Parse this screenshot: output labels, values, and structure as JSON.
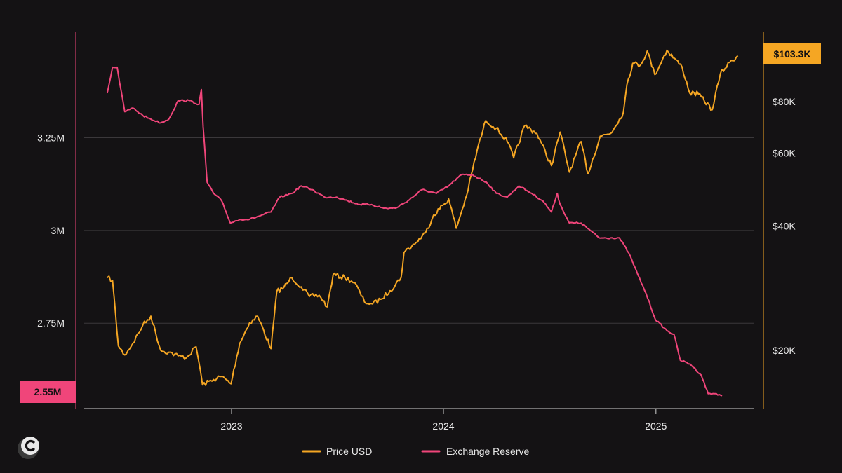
{
  "chart_data": {
    "type": "line",
    "title": "",
    "xlabel": "",
    "x_ticks": [
      "2023",
      "2024",
      "2025"
    ],
    "left_axis": {
      "series": "Exchange Reserve",
      "ticks": [
        {
          "value": 3250000,
          "label": "3.25M"
        },
        {
          "value": 3000000,
          "label": "3M"
        },
        {
          "value": 2750000,
          "label": "2.75M"
        }
      ],
      "ylim": [
        2520000,
        3470000
      ],
      "current_label": "2.55M"
    },
    "right_axis": {
      "series": "Price USD",
      "scale": "log",
      "ticks": [
        {
          "value": 80000,
          "label": "$80K"
        },
        {
          "value": 60000,
          "label": "$60K"
        },
        {
          "value": 40000,
          "label": "$40K"
        },
        {
          "value": 20000,
          "label": "$20K"
        }
      ],
      "ylim": [
        15000,
        120000
      ],
      "current_label": "$103.3K"
    },
    "grid": "horizontal",
    "legend_position": "bottom-center",
    "series": [
      {
        "name": "Price USD",
        "color": "#f5a623",
        "axis": "right",
        "points": [
          [
            "2022-06-01",
            30000
          ],
          [
            "2022-06-10",
            29500
          ],
          [
            "2022-06-20",
            20500
          ],
          [
            "2022-07-01",
            19500
          ],
          [
            "2022-07-15",
            20800
          ],
          [
            "2022-08-01",
            23000
          ],
          [
            "2022-08-15",
            24200
          ],
          [
            "2022-09-01",
            20000
          ],
          [
            "2022-09-15",
            19800
          ],
          [
            "2022-10-01",
            19400
          ],
          [
            "2022-10-15",
            19200
          ],
          [
            "2022-11-01",
            20400
          ],
          [
            "2022-11-08",
            18000
          ],
          [
            "2022-11-12",
            16500
          ],
          [
            "2022-12-01",
            17000
          ],
          [
            "2022-12-15",
            17300
          ],
          [
            "2022-12-31",
            16600
          ],
          [
            "2023-01-15",
            20800
          ],
          [
            "2023-02-01",
            23300
          ],
          [
            "2023-02-15",
            24200
          ],
          [
            "2023-03-10",
            20200
          ],
          [
            "2023-03-20",
            27800
          ],
          [
            "2023-04-01",
            28400
          ],
          [
            "2023-04-15",
            30000
          ],
          [
            "2023-05-01",
            28500
          ],
          [
            "2023-05-15",
            27000
          ],
          [
            "2023-06-01",
            27200
          ],
          [
            "2023-06-15",
            25500
          ],
          [
            "2023-06-25",
            30500
          ],
          [
            "2023-07-15",
            30000
          ],
          [
            "2023-08-01",
            29200
          ],
          [
            "2023-08-18",
            26200
          ],
          [
            "2023-09-01",
            25900
          ],
          [
            "2023-09-15",
            26600
          ],
          [
            "2023-10-01",
            27900
          ],
          [
            "2023-10-20",
            30000
          ],
          [
            "2023-10-25",
            34500
          ],
          [
            "2023-11-15",
            36500
          ],
          [
            "2023-12-01",
            38500
          ],
          [
            "2023-12-15",
            42500
          ],
          [
            "2024-01-10",
            46500
          ],
          [
            "2024-01-23",
            39500
          ],
          [
            "2024-02-10",
            47500
          ],
          [
            "2024-02-28",
            61000
          ],
          [
            "2024-03-14",
            72000
          ],
          [
            "2024-04-01",
            69000
          ],
          [
            "2024-04-20",
            64000
          ],
          [
            "2024-05-01",
            58500
          ],
          [
            "2024-05-20",
            70000
          ],
          [
            "2024-06-10",
            67000
          ],
          [
            "2024-07-05",
            56000
          ],
          [
            "2024-07-20",
            67500
          ],
          [
            "2024-08-05",
            54000
          ],
          [
            "2024-08-25",
            64000
          ],
          [
            "2024-09-06",
            53500
          ],
          [
            "2024-09-27",
            66000
          ],
          [
            "2024-10-15",
            67000
          ],
          [
            "2024-10-30",
            72500
          ],
          [
            "2024-11-06",
            75500
          ],
          [
            "2024-11-12",
            88000
          ],
          [
            "2024-11-22",
            99000
          ],
          [
            "2024-12-05",
            98000
          ],
          [
            "2024-12-17",
            106000
          ],
          [
            "2024-12-30",
            93000
          ],
          [
            "2025-01-20",
            106500
          ],
          [
            "2025-02-15",
            97000
          ],
          [
            "2025-02-28",
            84000
          ],
          [
            "2025-03-15",
            83500
          ],
          [
            "2025-04-08",
            76500
          ],
          [
            "2025-04-22",
            93500
          ],
          [
            "2025-05-08",
            99500
          ],
          [
            "2025-05-22",
            103300
          ]
        ]
      },
      {
        "name": "Exchange Reserve",
        "color": "#f0457a",
        "axis": "left",
        "points": [
          [
            "2022-06-01",
            3370000
          ],
          [
            "2022-06-10",
            3440000
          ],
          [
            "2022-06-18",
            3440000
          ],
          [
            "2022-06-22",
            3400000
          ],
          [
            "2022-07-01",
            3320000
          ],
          [
            "2022-07-15",
            3330000
          ],
          [
            "2022-08-01",
            3310000
          ],
          [
            "2022-08-15",
            3300000
          ],
          [
            "2022-09-01",
            3290000
          ],
          [
            "2022-09-15",
            3300000
          ],
          [
            "2022-10-01",
            3350000
          ],
          [
            "2022-10-20",
            3350000
          ],
          [
            "2022-11-06",
            3340000
          ],
          [
            "2022-11-10",
            3380000
          ],
          [
            "2022-11-13",
            3280000
          ],
          [
            "2022-11-20",
            3130000
          ],
          [
            "2022-12-01",
            3100000
          ],
          [
            "2022-12-15",
            3080000
          ],
          [
            "2022-12-30",
            3020000
          ],
          [
            "2023-01-15",
            3030000
          ],
          [
            "2023-02-01",
            3030000
          ],
          [
            "2023-02-20",
            3040000
          ],
          [
            "2023-03-10",
            3050000
          ],
          [
            "2023-03-25",
            3090000
          ],
          [
            "2023-04-15",
            3100000
          ],
          [
            "2023-05-01",
            3120000
          ],
          [
            "2023-05-20",
            3110000
          ],
          [
            "2023-06-10",
            3090000
          ],
          [
            "2023-07-01",
            3090000
          ],
          [
            "2023-07-20",
            3080000
          ],
          [
            "2023-08-10",
            3070000
          ],
          [
            "2023-08-30",
            3070000
          ],
          [
            "2023-09-20",
            3060000
          ],
          [
            "2023-10-10",
            3060000
          ],
          [
            "2023-11-01",
            3080000
          ],
          [
            "2023-11-25",
            3110000
          ],
          [
            "2023-12-20",
            3100000
          ],
          [
            "2024-01-10",
            3120000
          ],
          [
            "2024-02-01",
            3150000
          ],
          [
            "2024-02-20",
            3150000
          ],
          [
            "2024-03-15",
            3130000
          ],
          [
            "2024-04-01",
            3100000
          ],
          [
            "2024-04-20",
            3090000
          ],
          [
            "2024-05-10",
            3120000
          ],
          [
            "2024-06-01",
            3100000
          ],
          [
            "2024-06-20",
            3080000
          ],
          [
            "2024-07-05",
            3050000
          ],
          [
            "2024-07-15",
            3100000
          ],
          [
            "2024-07-20",
            3070000
          ],
          [
            "2024-08-05",
            3020000
          ],
          [
            "2024-08-25",
            3020000
          ],
          [
            "2024-09-10",
            3000000
          ],
          [
            "2024-09-25",
            2980000
          ],
          [
            "2024-10-15",
            2980000
          ],
          [
            "2024-10-30",
            2980000
          ],
          [
            "2024-11-15",
            2940000
          ],
          [
            "2024-12-01",
            2880000
          ],
          [
            "2024-12-15",
            2830000
          ],
          [
            "2024-12-31",
            2760000
          ],
          [
            "2025-01-20",
            2730000
          ],
          [
            "2025-02-01",
            2720000
          ],
          [
            "2025-02-12",
            2650000
          ],
          [
            "2025-03-01",
            2640000
          ],
          [
            "2025-03-20",
            2610000
          ],
          [
            "2025-04-01",
            2560000
          ],
          [
            "2025-04-15",
            2560000
          ],
          [
            "2025-04-25",
            2555000
          ]
        ]
      }
    ]
  }
}
